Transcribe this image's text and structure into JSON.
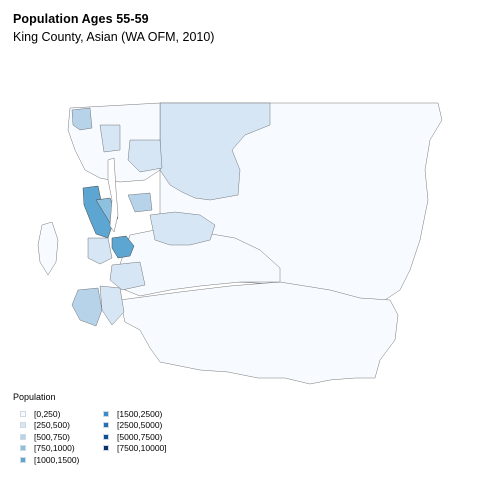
{
  "title": "Population Ages 55-59",
  "subtitle": "King County, Asian (WA OFM, 2010)",
  "legend": {
    "title": "Population",
    "items": [
      {
        "label": "[0,250)",
        "color": "#f7fbff"
      },
      {
        "label": "[250,500)",
        "color": "#d6e6f5"
      },
      {
        "label": "[500,750)",
        "color": "#b7d3ea"
      },
      {
        "label": "[750,1000)",
        "color": "#8ec0e0"
      },
      {
        "label": "[1000,1500)",
        "color": "#5ea6d2"
      },
      {
        "label": "[1500,2500)",
        "color": "#3f8bc3"
      },
      {
        "label": "[2500,5000)",
        "color": "#2970b1"
      },
      {
        "label": "[5000,7500)",
        "color": "#0e4f96"
      },
      {
        "label": "[7500,10000]",
        "color": "#08306b"
      }
    ]
  },
  "map": {
    "border_color": "#000000",
    "water_color": "#ffffff"
  }
}
